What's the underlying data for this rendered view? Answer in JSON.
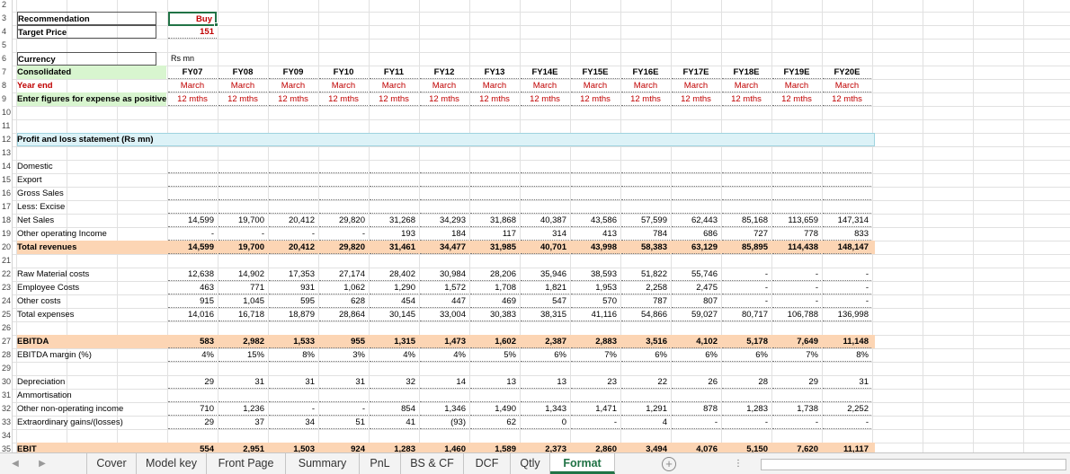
{
  "top_rows": [
    {
      "row": "2",
      "label": "",
      "value": ""
    },
    {
      "row": "3",
      "label": "Recommendation",
      "value": "Buy"
    },
    {
      "row": "4",
      "label": "Target Price",
      "value": "151"
    },
    {
      "row": "5",
      "label": "",
      "value": ""
    },
    {
      "row": "6",
      "label": "Currency",
      "value": "Rs mn"
    }
  ],
  "columns": [
    "FY07",
    "FY08",
    "FY09",
    "FY10",
    "FY11",
    "FY12",
    "FY13",
    "FY14E",
    "FY15E",
    "FY16E",
    "FY17E",
    "FY18E",
    "FY19E",
    "FY20E"
  ],
  "consolidated_label": "Consolidated",
  "yearend_label": "Year end",
  "yearend_value": "March",
  "enter_label": "Enter figures for expense as positive",
  "period_value": "12 mths",
  "section_title": "Profit and loss statement (Rs mn)",
  "rows": [
    {
      "n": "10",
      "label": "",
      "style": "blank",
      "values": []
    },
    {
      "n": "11",
      "label": "",
      "style": "blank",
      "values": []
    },
    {
      "n": "13",
      "label": "",
      "style": "blank",
      "values": []
    },
    {
      "n": "14",
      "label": "Domestic",
      "style": "plain",
      "values": [
        "",
        "",
        "",
        "",
        "",
        "",
        "",
        "",
        "",
        "",
        "",
        "",
        "",
        ""
      ]
    },
    {
      "n": "15",
      "label": "Export",
      "style": "plain",
      "values": [
        "",
        "",
        "",
        "",
        "",
        "",
        "",
        "",
        "",
        "",
        "",
        "",
        "",
        ""
      ]
    },
    {
      "n": "16",
      "label": "Gross Sales",
      "style": "plain",
      "values": [
        "",
        "",
        "",
        "",
        "",
        "",
        "",
        "",
        "",
        "",
        "",
        "",
        "",
        ""
      ]
    },
    {
      "n": "17",
      "label": "Less: Excise",
      "style": "plain",
      "values": [
        "",
        "",
        "",
        "",
        "",
        "",
        "",
        "",
        "",
        "",
        "",
        "",
        "",
        ""
      ]
    },
    {
      "n": "18",
      "label": "Net Sales",
      "style": "plain",
      "values": [
        "14,599",
        "19,700",
        "20,412",
        "29,820",
        "31,268",
        "34,293",
        "31,868",
        "40,387",
        "43,586",
        "57,599",
        "62,443",
        "85,168",
        "113,659",
        "147,314"
      ]
    },
    {
      "n": "19",
      "label": "Other operating Income",
      "style": "plain",
      "values": [
        "-",
        "-",
        "-",
        "-",
        "193",
        "184",
        "117",
        "314",
        "413",
        "784",
        "686",
        "727",
        "778",
        "833"
      ]
    },
    {
      "n": "20",
      "label": "Total revenues",
      "style": "peach",
      "values": [
        "14,599",
        "19,700",
        "20,412",
        "29,820",
        "31,461",
        "34,477",
        "31,985",
        "40,701",
        "43,998",
        "58,383",
        "63,129",
        "85,895",
        "114,438",
        "148,147"
      ]
    },
    {
      "n": "21",
      "label": "",
      "style": "blank",
      "values": []
    },
    {
      "n": "22",
      "label": "Raw Material costs",
      "style": "plain",
      "values": [
        "12,638",
        "14,902",
        "17,353",
        "27,174",
        "28,402",
        "30,984",
        "28,206",
        "35,946",
        "38,593",
        "51,822",
        "55,746",
        "-",
        "-",
        "-"
      ]
    },
    {
      "n": "23",
      "label": "Employee Costs",
      "style": "plain",
      "values": [
        "463",
        "771",
        "931",
        "1,062",
        "1,290",
        "1,572",
        "1,708",
        "1,821",
        "1,953",
        "2,258",
        "2,475",
        "-",
        "-",
        "-"
      ]
    },
    {
      "n": "24",
      "label": "Other costs",
      "style": "plain",
      "values": [
        "915",
        "1,045",
        "595",
        "628",
        "454",
        "447",
        "469",
        "547",
        "570",
        "787",
        "807",
        "-",
        "-",
        "-"
      ]
    },
    {
      "n": "25",
      "label": "Total expenses",
      "style": "plain",
      "values": [
        "14,016",
        "16,718",
        "18,879",
        "28,864",
        "30,145",
        "33,004",
        "30,383",
        "38,315",
        "41,116",
        "54,866",
        "59,027",
        "80,717",
        "106,788",
        "136,998"
      ]
    },
    {
      "n": "26",
      "label": "",
      "style": "blank",
      "values": []
    },
    {
      "n": "27",
      "label": "EBITDA",
      "style": "peach",
      "values": [
        "583",
        "2,982",
        "1,533",
        "955",
        "1,315",
        "1,473",
        "1,602",
        "2,387",
        "2,883",
        "3,516",
        "4,102",
        "5,178",
        "7,649",
        "11,148"
      ]
    },
    {
      "n": "28",
      "label": "EBITDA margin (%)",
      "style": "plain",
      "values": [
        "4%",
        "15%",
        "8%",
        "3%",
        "4%",
        "4%",
        "5%",
        "6%",
        "7%",
        "6%",
        "6%",
        "6%",
        "7%",
        "8%"
      ]
    },
    {
      "n": "29",
      "label": "",
      "style": "blank",
      "values": []
    },
    {
      "n": "30",
      "label": "Depreciation",
      "style": "plain",
      "values": [
        "29",
        "31",
        "31",
        "31",
        "32",
        "14",
        "13",
        "13",
        "23",
        "22",
        "26",
        "28",
        "29",
        "31"
      ]
    },
    {
      "n": "31",
      "label": "Ammortisation",
      "style": "plain",
      "values": [
        "",
        "",
        "",
        "",
        "",
        "",
        "",
        "",
        "",
        "",
        "",
        "",
        "",
        ""
      ]
    },
    {
      "n": "32",
      "label": "Other non-operating income",
      "style": "plain",
      "values": [
        "710",
        "1,236",
        "-",
        "-",
        "854",
        "1,346",
        "1,490",
        "1,343",
        "1,471",
        "1,291",
        "878",
        "1,283",
        "1,738",
        "2,252"
      ]
    },
    {
      "n": "33",
      "label": "Extraordinary gains/(losses)",
      "style": "plain",
      "values": [
        "29",
        "37",
        "34",
        "51",
        "41",
        "(93)",
        "62",
        "0",
        "-",
        "4",
        "-",
        "-",
        "-",
        "-"
      ]
    },
    {
      "n": "34",
      "label": "",
      "style": "blank",
      "values": []
    },
    {
      "n": "35",
      "label": "EBIT",
      "style": "peach",
      "values": [
        "554",
        "2,951",
        "1,503",
        "924",
        "1,283",
        "1,460",
        "1,589",
        "2,373",
        "2,860",
        "3,494",
        "4,076",
        "5,150",
        "7,620",
        "11,117"
      ]
    }
  ],
  "tabs": [
    "Cover",
    "Model key",
    "Front Page",
    "Summary",
    "PnL",
    "BS & CF",
    "DCF",
    "Qtly",
    "Format"
  ],
  "active_tab": "Format",
  "tab_nav": {
    "prev": "◀",
    "next": "▶",
    "add": "+",
    "more": "⋮"
  }
}
